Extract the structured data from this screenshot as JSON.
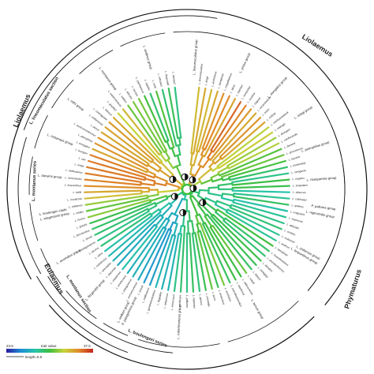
{
  "genera": [
    {
      "name": "Liolaemus",
      "label": "Liolaemus"
    },
    {
      "name": "Phymaturus",
      "label": "Phymaturus"
    },
    {
      "name": "Liolaemus-outer-left",
      "label": "Liolaemus"
    },
    {
      "name": "Eulaemus",
      "label": "Eulaemus"
    }
  ],
  "sections": [
    {
      "label": "L. lineomaculatus section"
    },
    {
      "label": "L. montanus series"
    },
    {
      "label": "L. montanus section"
    },
    {
      "label": "L. boulengeri series"
    }
  ],
  "groups": [
    "L. pictus group",
    "L. elongatus group",
    "L. kriegi group",
    "L. petrophilus group",
    "L. neuquensis group",
    "L. nigroviridis group",
    "L. chiliensis group",
    "L. leopardinus group",
    "L. tenuis group",
    "L. robertmertensi group",
    "L. walkeri group",
    "L. fitzgeraldi group",
    "L. anomalus group",
    "L. wiegmannii group",
    "L. darwinii group",
    "L. melanops group",
    "L. rothi group",
    "L. montanus group",
    "L. andinus group",
    "L. lineomaculatus group",
    "P. palluma group",
    "P. patagonicus group",
    "L. boulengeri clade"
  ],
  "tip_labels": [
    "lineomaculatus",
    "kingii",
    "archeforus",
    "sarmientoi",
    "magellanicus",
    "silvai",
    "hatcheri",
    "morandae",
    "scolaroi",
    "baguali",
    "escarchadosi",
    "tristis",
    "zullyae",
    "chehuachekenk",
    "kolengh",
    "fitzingerii",
    "xanthoviridis",
    "darwinii",
    "grosseorum",
    "laurenti",
    "koslowskyi",
    "olongasta",
    "riojanus",
    "scapularis",
    "abaucan",
    "calchaqui",
    "quilmes",
    "irregularis",
    "espinozai",
    "albiceps",
    "ornatus",
    "multicolor",
    "andinus",
    "famatinae",
    "huacahuasicus",
    "poecilochromus",
    "eleodori",
    "dorbignyi",
    "fabiani",
    "ruibali",
    "vallecurensis",
    "duellmani",
    "pseudoanomalus",
    "anomalus",
    "annectens",
    "puna",
    "orientalis",
    "jamesi",
    "nigriceps",
    "palluma",
    "vociferans",
    "verrucosus",
    "adspersus",
    "flagellifer",
    "gynandromorphus",
    "mallimaccii",
    "punae",
    "somuncurensis",
    "patagonicus",
    "tenebrosus",
    "zapalensis",
    "payuniae",
    "spectabilis",
    "indistinctus",
    "sitesi",
    "spurius",
    "antofagastensis",
    "tenuis",
    "lemniscatus",
    "gracilis",
    "fuscus",
    "nitidus",
    "chiliensis",
    "monticola",
    "bellii",
    "leopardinus",
    "ramonensis",
    "valdesianus",
    "kriegi",
    "ceii",
    "buergeri",
    "elongatus",
    "petrophilus",
    "austromendocinus",
    "pictus",
    "chillanensis",
    "cyanogaster",
    "bibronii",
    "gracilis2",
    "robertmertensi",
    "walkeri",
    "alticolor",
    "tacnae",
    "pantherinus",
    "signifer",
    "ortizi",
    "robustus",
    "fitzgeraldi",
    "tacnae2"
  ],
  "legend": {
    "min_label": "23.5",
    "mid_label": "trait value",
    "max_label": "37.5",
    "scale_label": "length=0.5",
    "gradient": [
      "#2b1a9c",
      "#1f8fd6",
      "#26c4a8",
      "#3fbf3f",
      "#c8d43a",
      "#e08a2a",
      "#c2261e"
    ]
  },
  "colors": {
    "ring": "#111111",
    "node_marker": "#111111"
  }
}
